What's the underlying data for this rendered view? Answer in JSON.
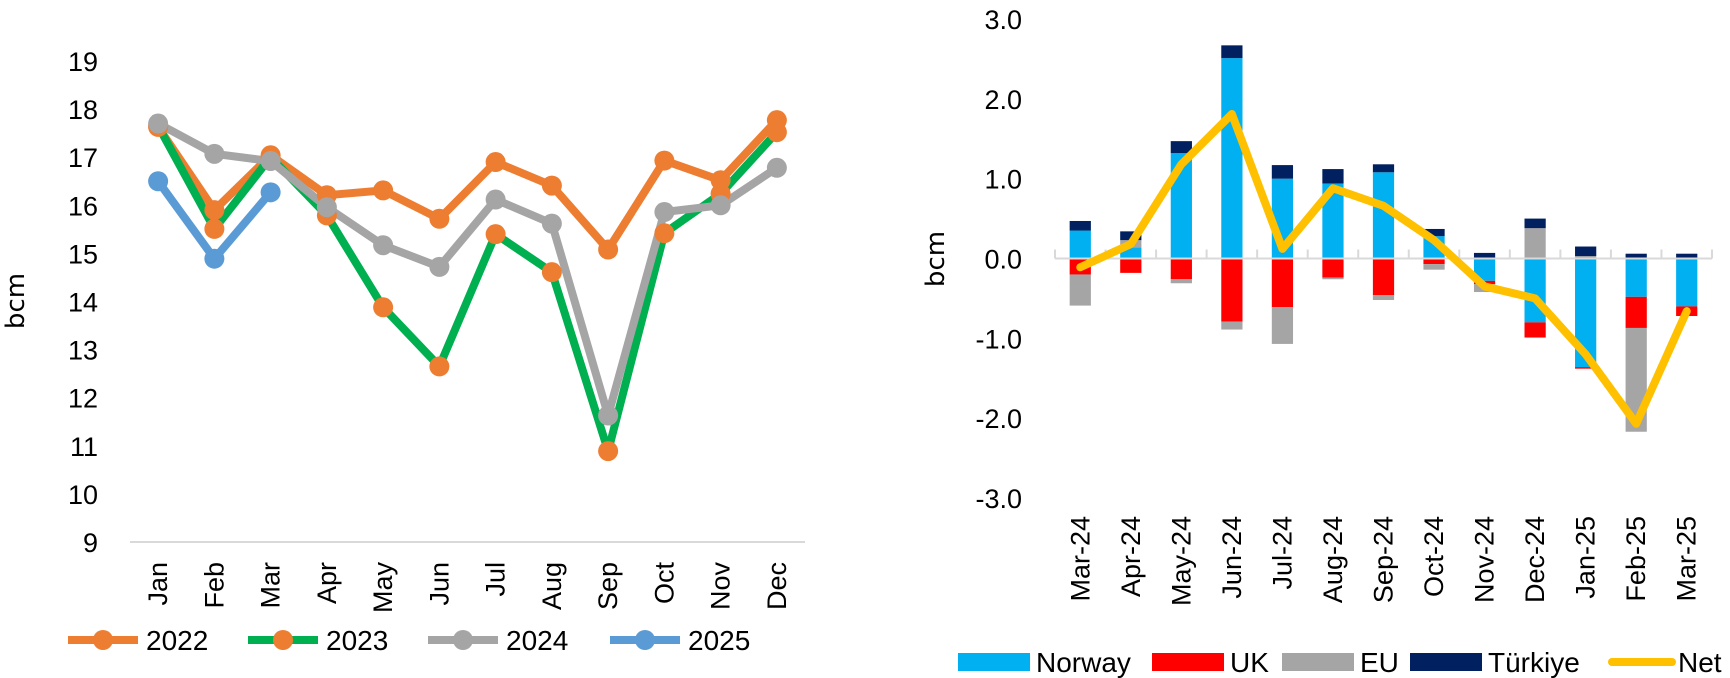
{
  "chart_data": [
    {
      "type": "line",
      "title": "",
      "xlabel": "",
      "ylabel": "bcm",
      "ylim": [
        9,
        19
      ],
      "yticks": [
        "19",
        "18",
        "17",
        "16",
        "15",
        "14",
        "13",
        "12",
        "11",
        "10",
        "9"
      ],
      "grid": false,
      "legend_position": "bottom",
      "categories": [
        "Jan",
        "Feb",
        "Mar",
        "Apr",
        "May",
        "Jun",
        "Jul",
        "Aug",
        "Sep",
        "Oct",
        "Nov",
        "Dec"
      ],
      "series": [
        {
          "name": "2022",
          "line_color": "#ED7D31",
          "marker_color": "#ED7D31",
          "values": [
            17.63,
            15.9,
            17.04,
            16.21,
            16.31,
            15.72,
            16.9,
            16.41,
            15.08,
            16.93,
            16.52,
            17.77
          ]
        },
        {
          "name": "2023",
          "line_color": "#00B050",
          "marker_color": "#ED7D31",
          "values": [
            17.65,
            15.51,
            17.0,
            15.79,
            13.88,
            12.65,
            15.4,
            14.61,
            10.89,
            15.42,
            16.24,
            17.52
          ]
        },
        {
          "name": "2024",
          "line_color": "#A5A5A5",
          "marker_color": "#A5A5A5",
          "values": [
            17.7,
            17.07,
            16.92,
            15.96,
            15.17,
            14.72,
            16.12,
            15.62,
            11.63,
            15.86,
            16.0,
            16.78
          ]
        },
        {
          "name": "2025",
          "line_color": "#5B9BD5",
          "marker_color": "#5B9BD5",
          "values": [
            16.5,
            14.89,
            16.27,
            null,
            null,
            null,
            null,
            null,
            null,
            null,
            null,
            null
          ]
        }
      ]
    },
    {
      "type": "bar",
      "stacked": true,
      "title": "",
      "xlabel": "",
      "ylabel": "bcm",
      "ylim": [
        -3.0,
        3.0
      ],
      "yticks": [
        "3.0",
        "2.0",
        "1.0",
        "0.0",
        "-1.0",
        "-2.0",
        "-3.0"
      ],
      "grid": false,
      "legend_position": "bottom",
      "categories": [
        "Mar-24",
        "Apr-24",
        "May-24",
        "Jun-24",
        "Jul-24",
        "Aug-24",
        "Sep-24",
        "Oct-24",
        "Nov-24",
        "Dec-24",
        "Jan-25",
        "Feb-25",
        "Mar-25"
      ],
      "series": [
        {
          "name": "Norway",
          "color": "#00B0F0",
          "kind": "bar",
          "values": [
            0.35,
            0.14,
            1.32,
            2.51,
            1.0,
            0.94,
            1.08,
            0.28,
            -0.28,
            -0.8,
            -1.36,
            -0.48,
            -0.6
          ]
        },
        {
          "name": "UK",
          "color": "#FF0000",
          "kind": "bar",
          "values": [
            -0.2,
            -0.18,
            -0.26,
            -0.79,
            -0.61,
            -0.24,
            -0.46,
            -0.07,
            -0.04,
            -0.19,
            -0.02,
            -0.39,
            -0.12
          ]
        },
        {
          "name": "EU",
          "color": "#A5A5A5",
          "kind": "bar",
          "values": [
            -0.39,
            0.09,
            -0.05,
            -0.1,
            -0.46,
            -0.02,
            -0.06,
            -0.07,
            -0.1,
            0.38,
            0.03,
            -1.3,
            0.0
          ]
        },
        {
          "name": "Türkiye",
          "color": "#002060",
          "kind": "bar",
          "values": [
            0.12,
            0.11,
            0.15,
            0.16,
            0.17,
            0.18,
            0.1,
            0.09,
            0.07,
            0.12,
            0.12,
            0.06,
            0.06
          ]
        },
        {
          "name": "Net",
          "color": "#FFC000",
          "kind": "line",
          "values": [
            -0.11,
            0.18,
            1.18,
            1.81,
            0.12,
            0.88,
            0.66,
            0.23,
            -0.35,
            -0.5,
            -1.2,
            -2.07,
            -0.66
          ]
        }
      ]
    }
  ]
}
